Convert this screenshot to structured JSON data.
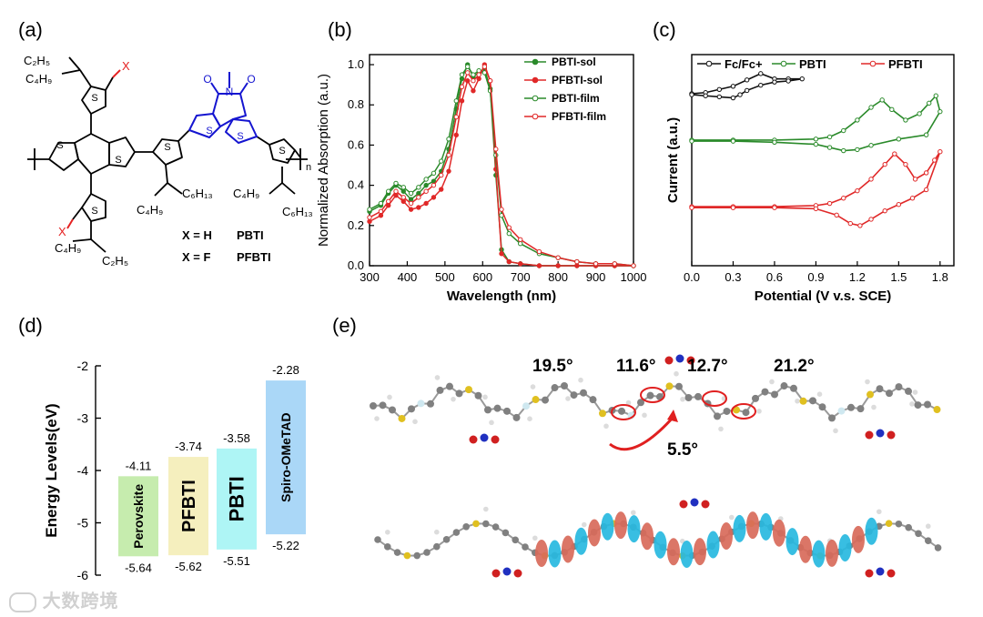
{
  "panels": {
    "a": "(a)",
    "b": "(b)",
    "c": "(c)",
    "d": "(d)",
    "e": "(e)"
  },
  "structure": {
    "labels": {
      "c2h5_top": "C₂H₅",
      "c4h9_topleft": "C₄H₉",
      "c6h13_mid": "C₆H₁₃",
      "c4h9_mid": "C₄H₉",
      "c4h9_right": "C₄H₉",
      "c6h13_right": "C₆H₁₃",
      "c4h9_bottom": "C₄H₉",
      "c2h5_bottom": "C₂H₅",
      "x_top": "X",
      "x_bottom": "X",
      "s": "S",
      "n": "n",
      "o": "O",
      "n_atom": "N"
    },
    "legend": [
      {
        "lhs": "X = H",
        "name": "PBTI"
      },
      {
        "lhs": "X = F",
        "name": "PFBTI"
      }
    ],
    "colors": {
      "core": "#1515d0",
      "x": "#e52222",
      "bond": "#000000"
    }
  },
  "chart_data": [
    {
      "id": "b",
      "type": "line",
      "title": "",
      "xlabel": "Wavelength (nm)",
      "ylabel": "Normalized Absorption (a.u.)",
      "xlim": [
        300,
        1000
      ],
      "ylim": [
        0,
        1.05
      ],
      "xticks": [
        300,
        400,
        500,
        600,
        700,
        800,
        900,
        1000
      ],
      "yticks": [
        0.0,
        0.2,
        0.4,
        0.6,
        0.8,
        1.0
      ],
      "legend_position": "top-right",
      "series": [
        {
          "name": "PBTI-sol",
          "color": "#2a8a2a",
          "marker": "filled",
          "x": [
            300,
            330,
            350,
            370,
            390,
            410,
            430,
            450,
            470,
            490,
            510,
            530,
            545,
            560,
            575,
            590,
            605,
            620,
            635,
            650,
            670,
            700,
            750,
            800,
            850,
            900,
            950,
            1000
          ],
          "y": [
            0.27,
            0.3,
            0.36,
            0.4,
            0.37,
            0.33,
            0.36,
            0.4,
            0.42,
            0.47,
            0.58,
            0.78,
            0.93,
            1.0,
            0.94,
            0.96,
            0.98,
            0.88,
            0.45,
            0.08,
            0.02,
            0.01,
            0.0,
            0.0,
            0.0,
            0.0,
            0.0,
            0.0
          ]
        },
        {
          "name": "PFBTI-sol",
          "color": "#e02828",
          "marker": "filled",
          "x": [
            300,
            330,
            350,
            370,
            390,
            410,
            430,
            450,
            470,
            490,
            510,
            530,
            545,
            560,
            575,
            590,
            605,
            620,
            635,
            650,
            670,
            700,
            750,
            800,
            850,
            900,
            950,
            1000
          ],
          "y": [
            0.22,
            0.25,
            0.3,
            0.35,
            0.32,
            0.28,
            0.29,
            0.31,
            0.34,
            0.38,
            0.47,
            0.65,
            0.82,
            0.92,
            0.87,
            0.93,
            1.0,
            0.92,
            0.48,
            0.06,
            0.02,
            0.01,
            0.0,
            0.0,
            0.0,
            0.0,
            0.0,
            0.0
          ]
        },
        {
          "name": "PBTI-film",
          "color": "#2a8a2a",
          "marker": "open",
          "x": [
            300,
            330,
            350,
            370,
            390,
            410,
            430,
            450,
            470,
            490,
            510,
            530,
            545,
            560,
            575,
            590,
            605,
            620,
            635,
            650,
            670,
            700,
            750,
            800,
            850,
            900,
            950,
            1000
          ],
          "y": [
            0.28,
            0.31,
            0.37,
            0.41,
            0.39,
            0.36,
            0.39,
            0.43,
            0.46,
            0.52,
            0.63,
            0.82,
            0.95,
            0.99,
            0.95,
            0.97,
            0.96,
            0.87,
            0.55,
            0.25,
            0.16,
            0.11,
            0.06,
            0.04,
            0.02,
            0.01,
            0.01,
            0.0
          ]
        },
        {
          "name": "PFBTI-film",
          "color": "#e02828",
          "marker": "open",
          "x": [
            300,
            330,
            350,
            370,
            390,
            410,
            430,
            450,
            470,
            490,
            510,
            530,
            545,
            560,
            575,
            590,
            605,
            620,
            635,
            650,
            670,
            700,
            750,
            800,
            850,
            900,
            950,
            1000
          ],
          "y": [
            0.24,
            0.27,
            0.32,
            0.37,
            0.34,
            0.31,
            0.34,
            0.37,
            0.4,
            0.45,
            0.55,
            0.74,
            0.89,
            0.96,
            0.92,
            0.95,
            0.99,
            0.92,
            0.58,
            0.28,
            0.19,
            0.13,
            0.07,
            0.04,
            0.02,
            0.01,
            0.01,
            0.0
          ]
        }
      ]
    },
    {
      "id": "c",
      "type": "line",
      "title": "",
      "xlabel": "Potential (V v.s. SCE)",
      "ylabel": "Current (a.u.)",
      "xlim": [
        0.0,
        1.9
      ],
      "xticks": [
        0.0,
        0.3,
        0.6,
        0.9,
        1.2,
        1.5,
        1.8
      ],
      "legend_position": "top",
      "series": [
        {
          "name": "Fc/Fc+",
          "color": "#111111",
          "marker": "open",
          "x": [
            0.0,
            0.1,
            0.2,
            0.3,
            0.4,
            0.5,
            0.6,
            0.7,
            0.8,
            0.7,
            0.6,
            0.5,
            0.4,
            0.35,
            0.3,
            0.2,
            0.1,
            0.0
          ],
          "y": [
            8.15,
            8.2,
            8.35,
            8.5,
            8.8,
            9.1,
            8.85,
            8.85,
            8.85,
            8.75,
            8.7,
            8.55,
            8.3,
            8.1,
            7.95,
            8.0,
            8.05,
            8.1
          ]
        },
        {
          "name": "PBTI",
          "color": "#2a8a2a",
          "marker": "open",
          "x": [
            0.0,
            0.3,
            0.6,
            0.9,
            1.0,
            1.1,
            1.2,
            1.3,
            1.38,
            1.45,
            1.55,
            1.65,
            1.72,
            1.77,
            1.8,
            1.7,
            1.5,
            1.3,
            1.2,
            1.1,
            1.0,
            0.9,
            0.6,
            0.3,
            0.0
          ],
          "y": [
            5.95,
            5.95,
            5.95,
            6.0,
            6.1,
            6.4,
            6.9,
            7.5,
            7.85,
            7.4,
            6.9,
            7.2,
            7.7,
            8.05,
            7.3,
            6.2,
            6.0,
            5.7,
            5.5,
            5.45,
            5.6,
            5.75,
            5.85,
            5.9,
            5.9
          ]
        },
        {
          "name": "PFBTI",
          "color": "#e02828",
          "marker": "open",
          "x": [
            0.0,
            0.3,
            0.6,
            0.9,
            1.0,
            1.1,
            1.2,
            1.3,
            1.4,
            1.47,
            1.55,
            1.62,
            1.7,
            1.76,
            1.8,
            1.7,
            1.6,
            1.5,
            1.4,
            1.3,
            1.22,
            1.15,
            1.05,
            0.9,
            0.6,
            0.3,
            0.0
          ],
          "y": [
            2.8,
            2.8,
            2.8,
            2.85,
            2.95,
            3.2,
            3.55,
            4.1,
            4.8,
            5.3,
            4.8,
            4.1,
            4.4,
            5.0,
            5.4,
            3.6,
            3.2,
            2.9,
            2.6,
            2.2,
            1.9,
            2.0,
            2.4,
            2.7,
            2.75,
            2.75,
            2.75
          ]
        }
      ]
    },
    {
      "id": "d",
      "type": "bar",
      "title": "",
      "xlabel": "",
      "ylabel": "Energy Levels(eV)",
      "ylim": [
        -6,
        -2
      ],
      "yticks": [
        -6,
        -5,
        -4,
        -3,
        -2
      ],
      "categories": [
        "Perovskite",
        "PFBTI",
        "PBTI",
        "Spiro-OMeTAD"
      ],
      "lumo": [
        -4.11,
        -3.74,
        -3.58,
        -2.28
      ],
      "homo": [
        -5.64,
        -5.62,
        -5.51,
        -5.22
      ],
      "lumo_labels": [
        "-4.11",
        "-3.74",
        "-3.58",
        "-2.28"
      ],
      "homo_labels": [
        "-5.64",
        "-5.62",
        "-5.51",
        "-5.22"
      ],
      "colors": [
        "#c6ecae",
        "#f5efbe",
        "#aef5f5",
        "#aad7f7"
      ],
      "bold": [
        false,
        true,
        true,
        false
      ],
      "font_sizes": [
        14,
        20,
        22,
        14
      ]
    }
  ],
  "molecule": {
    "angles": [
      "19.5°",
      "11.6°",
      "12.7°",
      "21.2°",
      "5.5°"
    ]
  },
  "watermark": {
    "text": "大数跨境"
  }
}
